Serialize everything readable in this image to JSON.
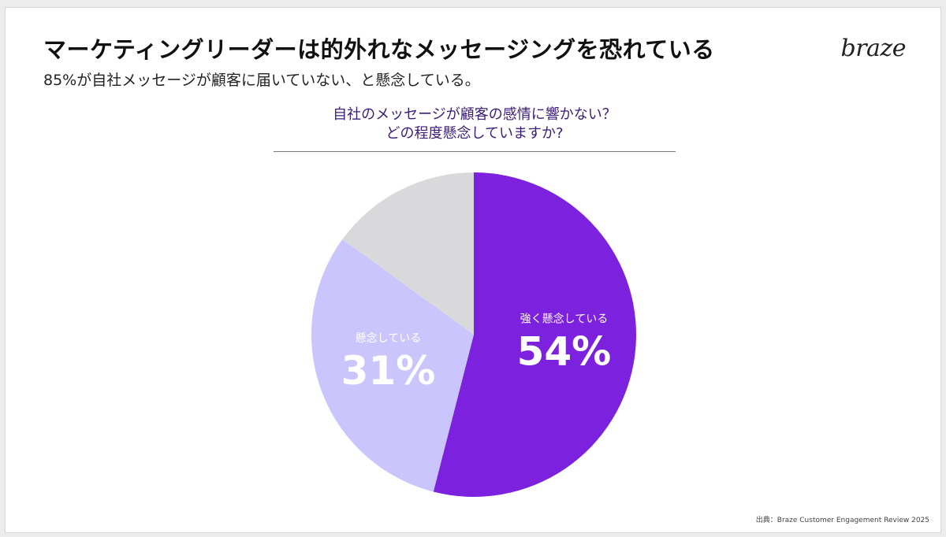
{
  "header": {
    "title": "マーケティングリーダーは的外れなメッセージングを恐れている",
    "subtitle": "85%が自社メッセージが顧客に届いていない、と懸念している。",
    "logo_text": "braze"
  },
  "chart_data": {
    "type": "pie",
    "title": [
      "自社のメッセージが顧客の感情に響かない？",
      "どの程度懸念していますか?"
    ],
    "slices": [
      {
        "label": "強く懸念している",
        "value": 54,
        "value_label": "54%",
        "color": "#7c21dd"
      },
      {
        "label": "懸念している",
        "value": 31,
        "value_label": "31%",
        "color": "#cbc5fd"
      },
      {
        "label": "",
        "value": 15,
        "value_label": "",
        "color": "#d9d8da"
      }
    ]
  },
  "footer": {
    "source": "出典：Braze Customer Engagement Review 2025"
  }
}
